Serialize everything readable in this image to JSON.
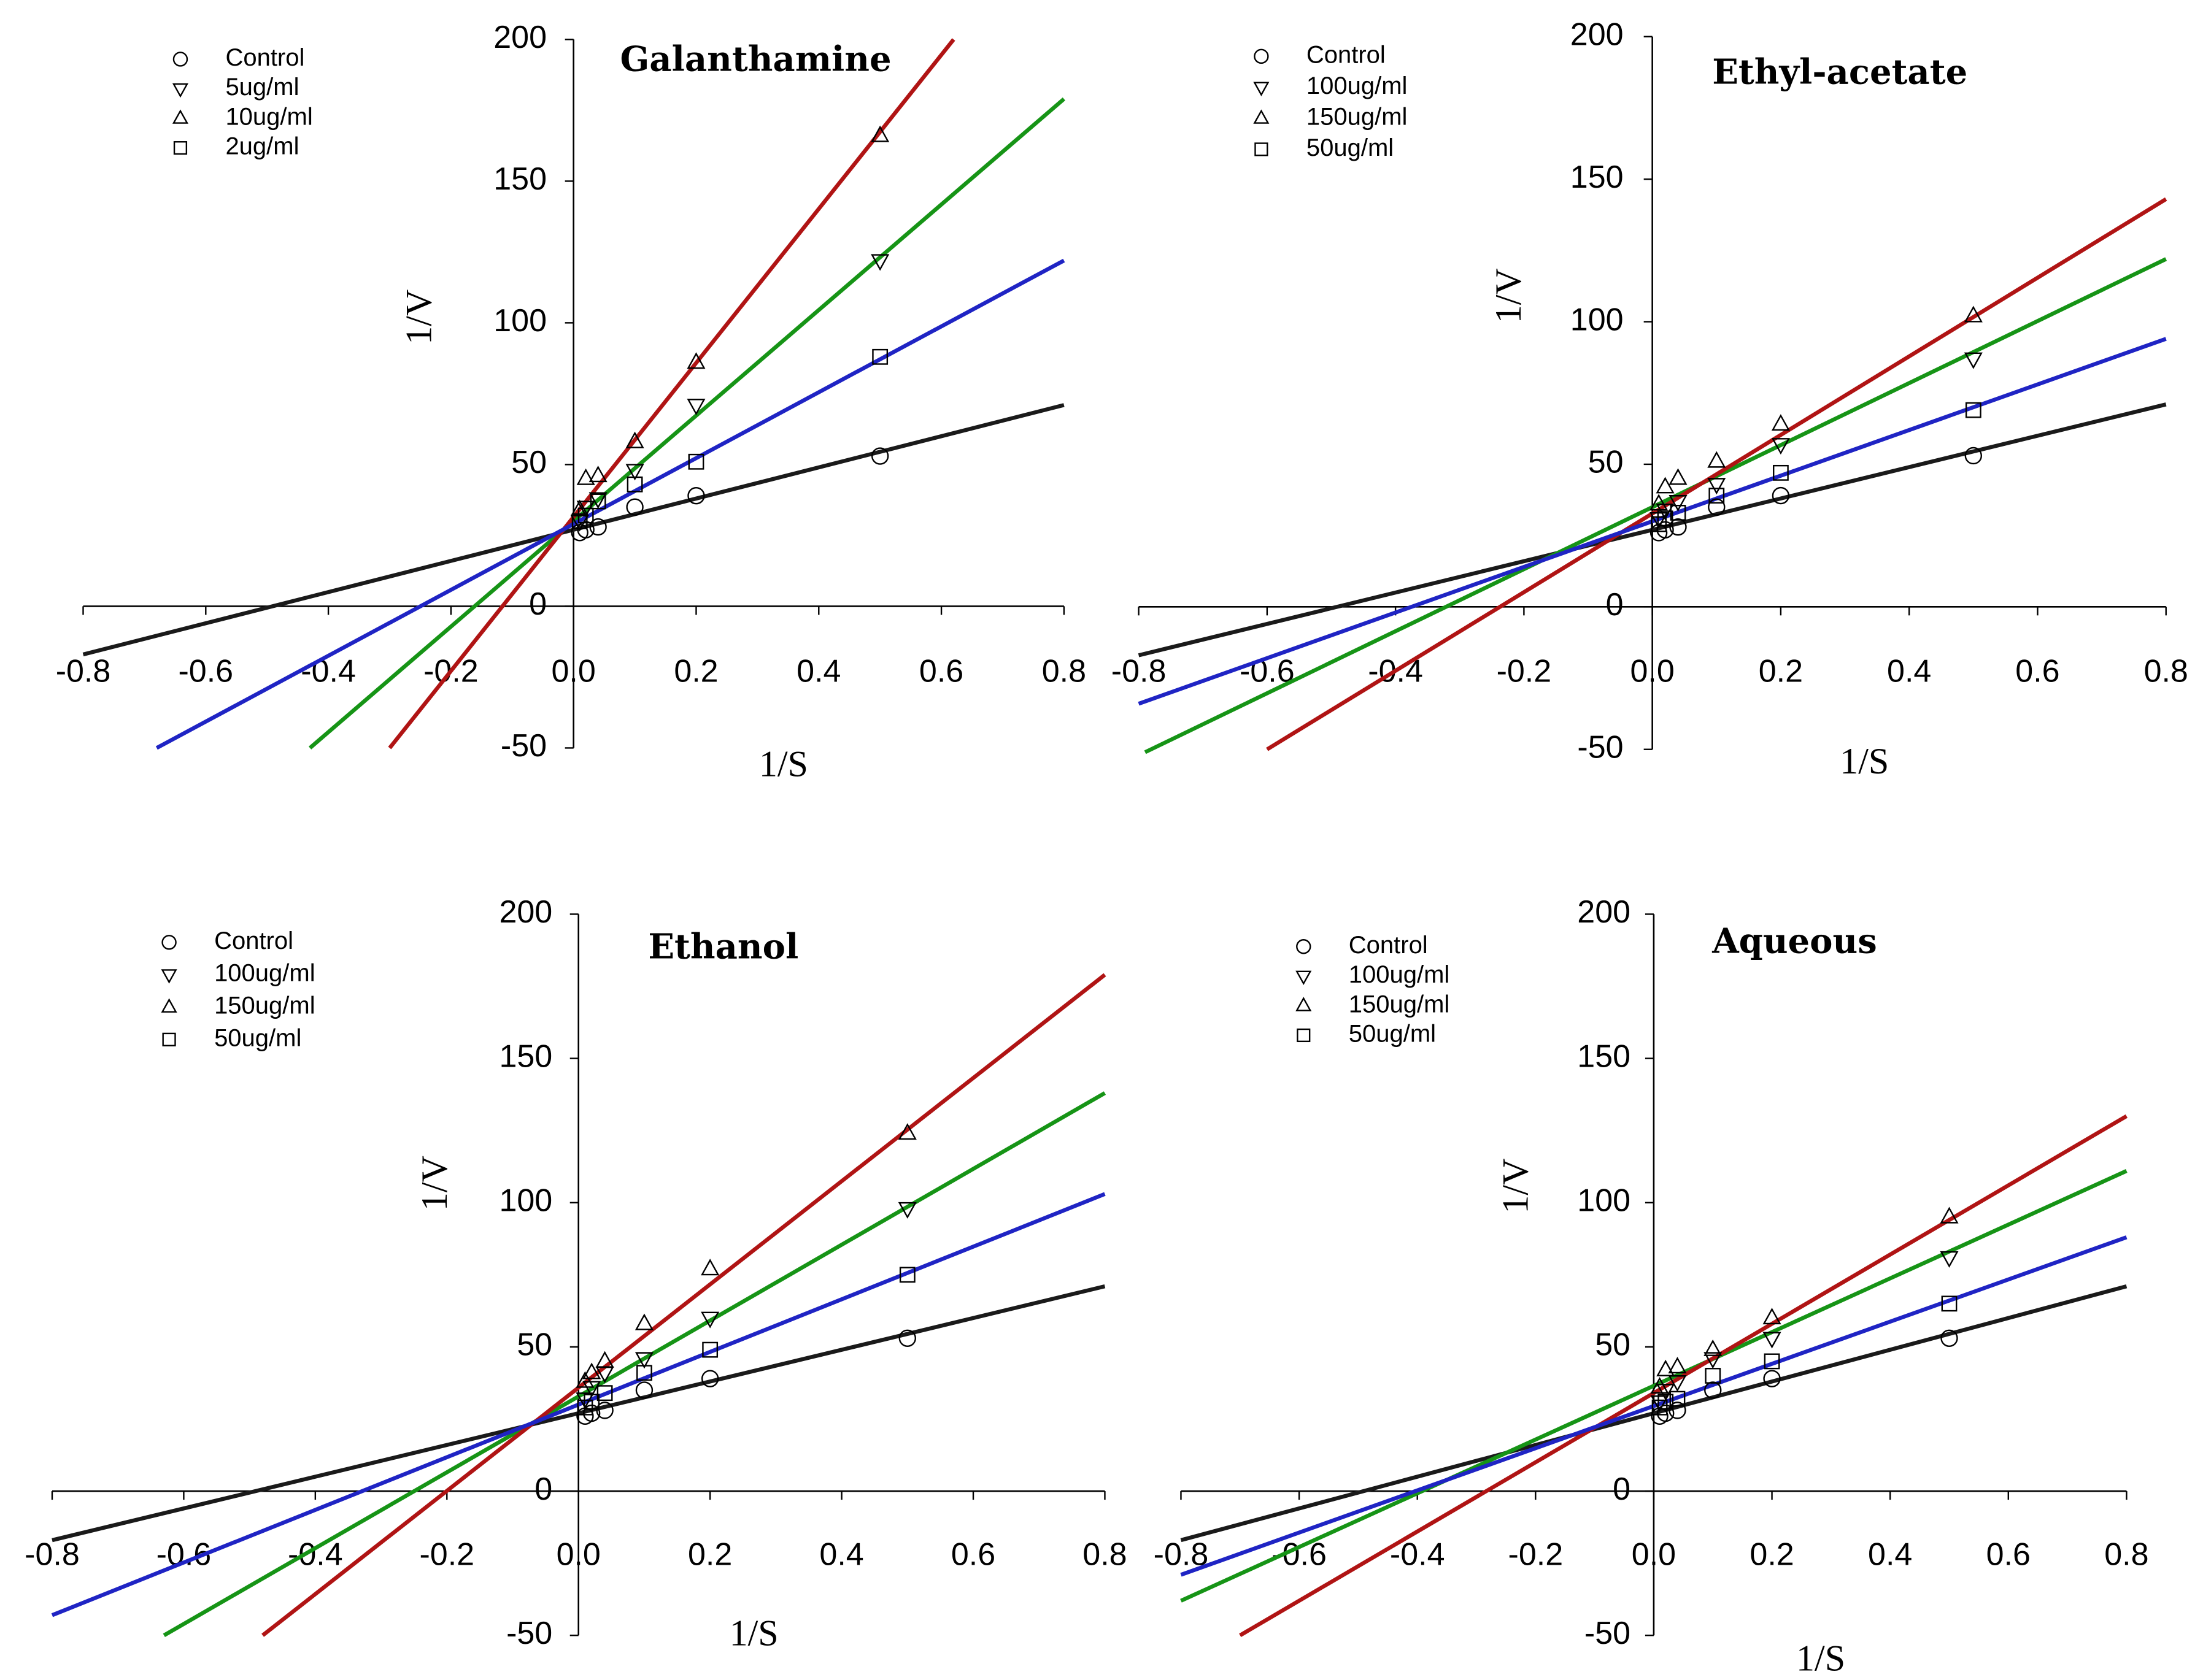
{
  "chart_data": [
    {
      "type": "line",
      "title": "Galanthamine",
      "xlabel": "1/S",
      "ylabel": "1/V",
      "xlim": [
        -0.8,
        0.8
      ],
      "ylim": [
        -50,
        200
      ],
      "xticks": [
        -0.8,
        -0.6,
        -0.4,
        -0.2,
        0.0,
        0.2,
        0.4,
        0.6,
        0.8
      ],
      "xtick_labels": [
        "-0.8",
        "-0.6",
        "-0.4",
        "-0.2",
        "0.0",
        "0.2",
        "0.4",
        "0.6",
        "0.8"
      ],
      "yticks": [
        -50,
        0,
        50,
        100,
        150,
        200
      ],
      "ytick_labels": [
        "-50",
        "0",
        "50",
        "100",
        "150",
        "200"
      ],
      "legend_position": "top-left",
      "grid": false,
      "series": [
        {
          "name": "Control",
          "marker": "circle",
          "color": "#1a1a1a",
          "points": [
            [
              0.01,
              26
            ],
            [
              0.02,
              27
            ],
            [
              0.04,
              28
            ],
            [
              0.1,
              35
            ],
            [
              0.2,
              39
            ],
            [
              0.5,
              53
            ]
          ],
          "fit": [
            [
              -0.8,
              -17
            ],
            [
              0.8,
              71
            ]
          ]
        },
        {
          "name": "5ug/ml",
          "marker": "triangle-down",
          "color": "#169416",
          "points": [
            [
              0.01,
              30
            ],
            [
              0.02,
              35
            ],
            [
              0.04,
              38
            ],
            [
              0.1,
              48
            ],
            [
              0.2,
              71
            ],
            [
              0.5,
              122
            ]
          ],
          "fit": [
            [
              -0.43,
              -50
            ],
            [
              0.8,
              179
            ]
          ]
        },
        {
          "name": "10ug/ml",
          "marker": "triangle-up",
          "color": "#b01414",
          "points": [
            [
              0.01,
              34
            ],
            [
              0.02,
              45
            ],
            [
              0.04,
              46
            ],
            [
              0.1,
              58
            ],
            [
              0.2,
              86
            ],
            [
              0.5,
              166
            ]
          ],
          "fit": [
            [
              -0.3,
              -50
            ],
            [
              0.62,
              200
            ]
          ]
        },
        {
          "name": "2ug/ml",
          "marker": "square",
          "color": "#1f24c4",
          "points": [
            [
              0.01,
              30
            ],
            [
              0.02,
              32
            ],
            [
              0.04,
              37
            ],
            [
              0.1,
              43
            ],
            [
              0.2,
              51
            ],
            [
              0.5,
              88
            ]
          ],
          "fit": [
            [
              -0.68,
              -50
            ],
            [
              0.8,
              122
            ]
          ]
        }
      ]
    },
    {
      "type": "line",
      "title": "Ethyl-acetate",
      "xlabel": "1/S",
      "ylabel": "1/V",
      "xlim": [
        -0.8,
        0.8
      ],
      "ylim": [
        -50,
        200
      ],
      "xticks": [
        -0.8,
        -0.6,
        -0.4,
        -0.2,
        0.0,
        0.2,
        0.4,
        0.6,
        0.8
      ],
      "xtick_labels": [
        "-0.8",
        "-0.6",
        "-0.4",
        "-0.2",
        "0.0",
        "0.2",
        "0.4",
        "0.6",
        "0.8"
      ],
      "yticks": [
        -50,
        0,
        50,
        100,
        150,
        200
      ],
      "ytick_labels": [
        "-50",
        "0",
        "50",
        "100",
        "150",
        "200"
      ],
      "legend_position": "top-left",
      "grid": false,
      "series": [
        {
          "name": "Control",
          "marker": "circle",
          "color": "#1a1a1a",
          "points": [
            [
              0.01,
              26
            ],
            [
              0.02,
              27
            ],
            [
              0.04,
              28
            ],
            [
              0.1,
              35
            ],
            [
              0.2,
              39
            ],
            [
              0.5,
              53
            ]
          ],
          "fit": [
            [
              -0.8,
              -17
            ],
            [
              0.8,
              71
            ]
          ]
        },
        {
          "name": "100ug/ml",
          "marker": "triangle-down",
          "color": "#169416",
          "points": [
            [
              0.01,
              31
            ],
            [
              0.02,
              34
            ],
            [
              0.04,
              37
            ],
            [
              0.1,
              43
            ],
            [
              0.2,
              57
            ],
            [
              0.5,
              87
            ]
          ],
          "fit": [
            [
              -0.79,
              -51
            ],
            [
              0.8,
              122
            ]
          ]
        },
        {
          "name": "150ug/ml",
          "marker": "triangle-up",
          "color": "#b01414",
          "points": [
            [
              0.01,
              36
            ],
            [
              0.02,
              42
            ],
            [
              0.04,
              45
            ],
            [
              0.1,
              51
            ],
            [
              0.2,
              64
            ],
            [
              0.5,
              102
            ]
          ],
          "fit": [
            [
              -0.6,
              -50
            ],
            [
              0.8,
              143
            ]
          ]
        },
        {
          "name": "50ug/ml",
          "marker": "square",
          "color": "#1f24c4",
          "points": [
            [
              0.01,
              29
            ],
            [
              0.02,
              31
            ],
            [
              0.04,
              33
            ],
            [
              0.1,
              39
            ],
            [
              0.2,
              47
            ],
            [
              0.5,
              69
            ]
          ],
          "fit": [
            [
              -0.8,
              -34
            ],
            [
              0.8,
              94
            ]
          ]
        }
      ]
    },
    {
      "type": "line",
      "title": "Ethanol",
      "xlabel": "1/S",
      "ylabel": "1/V",
      "xlim": [
        -0.8,
        0.8
      ],
      "ylim": [
        -50,
        200
      ],
      "xticks": [
        -0.8,
        -0.6,
        -0.4,
        -0.2,
        0.0,
        0.2,
        0.4,
        0.6,
        0.8
      ],
      "xtick_labels": [
        "-0.8",
        "-0.6",
        "-0.4",
        "-0.2",
        "0.0",
        "0.2",
        "0.4",
        "0.6",
        "0.8"
      ],
      "yticks": [
        -50,
        0,
        50,
        100,
        150,
        200
      ],
      "ytick_labels": [
        "-50",
        "0",
        "50",
        "100",
        "150",
        "200"
      ],
      "legend_position": "top-left",
      "grid": false,
      "series": [
        {
          "name": "Control",
          "marker": "circle",
          "color": "#1a1a1a",
          "points": [
            [
              0.01,
              26
            ],
            [
              0.02,
              27
            ],
            [
              0.04,
              28
            ],
            [
              0.1,
              35
            ],
            [
              0.2,
              39
            ],
            [
              0.5,
              53
            ]
          ],
          "fit": [
            [
              -0.8,
              -17
            ],
            [
              0.8,
              71
            ]
          ]
        },
        {
          "name": "100ug/ml",
          "marker": "triangle-down",
          "color": "#169416",
          "points": [
            [
              0.01,
              32
            ],
            [
              0.02,
              36
            ],
            [
              0.04,
              41
            ],
            [
              0.1,
              46
            ],
            [
              0.2,
              60
            ],
            [
              0.5,
              98
            ]
          ],
          "fit": [
            [
              -0.63,
              -50
            ],
            [
              0.8,
              138
            ]
          ]
        },
        {
          "name": "150ug/ml",
          "marker": "triangle-up",
          "color": "#b01414",
          "points": [
            [
              0.01,
              38
            ],
            [
              0.02,
              41
            ],
            [
              0.04,
              45
            ],
            [
              0.1,
              58
            ],
            [
              0.2,
              77
            ],
            [
              0.5,
              124
            ]
          ],
          "fit": [
            [
              -0.48,
              -50
            ],
            [
              0.8,
              179
            ]
          ]
        },
        {
          "name": "50ug/ml",
          "marker": "square",
          "color": "#1f24c4",
          "points": [
            [
              0.01,
              29
            ],
            [
              0.02,
              31
            ],
            [
              0.04,
              34
            ],
            [
              0.1,
              41
            ],
            [
              0.2,
              49
            ],
            [
              0.5,
              75
            ]
          ],
          "fit": [
            [
              -0.8,
              -43
            ],
            [
              0.8,
              103
            ]
          ]
        }
      ]
    },
    {
      "type": "line",
      "title": "Aqueous",
      "xlabel": "1/S",
      "ylabel": "1/V",
      "xlim": [
        -0.8,
        0.8
      ],
      "ylim": [
        -50,
        200
      ],
      "xticks": [
        -0.8,
        -0.6,
        -0.4,
        -0.2,
        0.0,
        0.2,
        0.4,
        0.6,
        0.8
      ],
      "xtick_labels": [
        "-0.8",
        "-0.6",
        "-0.4",
        "-0.2",
        "0.0",
        "0.2",
        "0.4",
        "0.6",
        "0.8"
      ],
      "yticks": [
        -50,
        0,
        50,
        100,
        150,
        200
      ],
      "ytick_labels": [
        "-50",
        "0",
        "50",
        "100",
        "150",
        "200"
      ],
      "legend_position": "top-left",
      "grid": false,
      "series": [
        {
          "name": "Control",
          "marker": "circle",
          "color": "#1a1a1a",
          "points": [
            [
              0.01,
              26
            ],
            [
              0.02,
              27
            ],
            [
              0.04,
              28
            ],
            [
              0.1,
              35
            ],
            [
              0.2,
              39
            ],
            [
              0.5,
              53
            ]
          ],
          "fit": [
            [
              -0.8,
              -17
            ],
            [
              0.8,
              71
            ]
          ]
        },
        {
          "name": "100ug/ml",
          "marker": "triangle-down",
          "color": "#169416",
          "points": [
            [
              0.01,
              31
            ],
            [
              0.02,
              35
            ],
            [
              0.04,
              38
            ],
            [
              0.1,
              46
            ],
            [
              0.2,
              53
            ],
            [
              0.5,
              81
            ]
          ],
          "fit": [
            [
              -0.8,
              -38
            ],
            [
              0.8,
              111
            ]
          ]
        },
        {
          "name": "150ug/ml",
          "marker": "triangle-up",
          "color": "#b01414",
          "points": [
            [
              0.01,
              36
            ],
            [
              0.02,
              42
            ],
            [
              0.04,
              43
            ],
            [
              0.1,
              49
            ],
            [
              0.2,
              60
            ],
            [
              0.5,
              95
            ]
          ],
          "fit": [
            [
              -0.7,
              -50
            ],
            [
              0.8,
              130
            ]
          ]
        },
        {
          "name": "50ug/ml",
          "marker": "square",
          "color": "#1f24c4",
          "points": [
            [
              0.01,
              29
            ],
            [
              0.02,
              31
            ],
            [
              0.04,
              32
            ],
            [
              0.1,
              40
            ],
            [
              0.2,
              45
            ],
            [
              0.5,
              65
            ]
          ],
          "fit": [
            [
              -0.8,
              -29
            ],
            [
              0.8,
              88
            ]
          ]
        }
      ]
    }
  ]
}
